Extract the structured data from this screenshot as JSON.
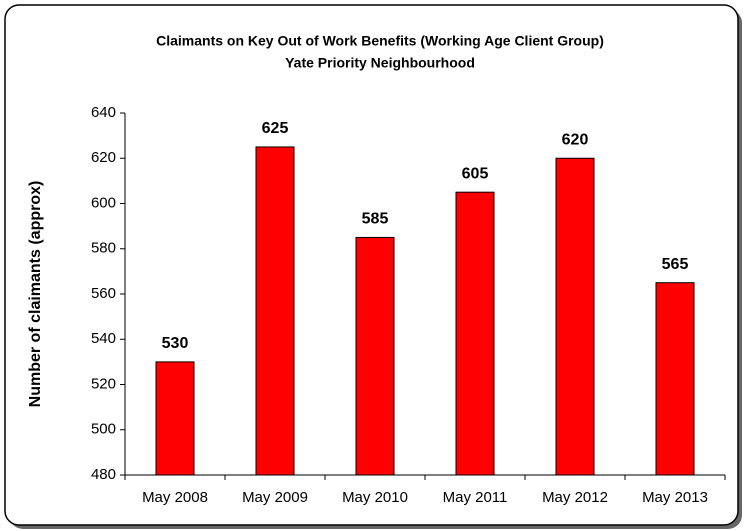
{
  "chart_data": {
    "type": "bar",
    "title": "Claimants on Key Out of Work Benefits (Working Age Client Group)",
    "subtitle": "Yate Priority Neighbourhood",
    "y_label": "Number of claimants (approx)",
    "categories": [
      "May 2008",
      "May 2009",
      "May 2010",
      "May 2011",
      "May 2012",
      "May 2013"
    ],
    "values": [
      530,
      625,
      585,
      605,
      620,
      565
    ],
    "color": "#ff0000",
    "ylim": [
      480,
      640
    ],
    "yticks": [
      480,
      500,
      520,
      540,
      560,
      580,
      600,
      620,
      640
    ],
    "grid": false
  }
}
